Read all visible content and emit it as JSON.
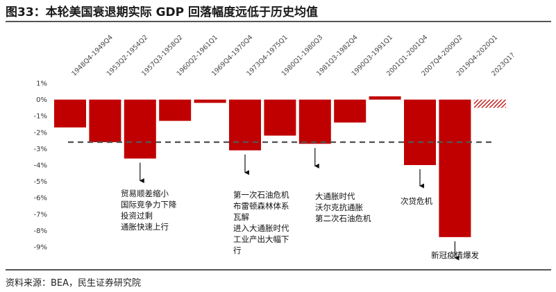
{
  "header": {
    "title": "图33：本轮美国衰退期实际 GDP 回落幅度远低于历史均值"
  },
  "footer": {
    "source": "资料来源：BEA，民生证券研究院"
  },
  "colors": {
    "bar": "#c00000",
    "hatch": "#c00000",
    "avg_line": "#555555"
  },
  "chart_data": {
    "type": "bar",
    "title": "本轮美国衰退期实际 GDP 回落幅度远低于历史均值",
    "xlabel": "",
    "ylabel": "",
    "ylim": [
      -9,
      1
    ],
    "yticks": [
      "1%",
      "0%",
      "-1%",
      "-2%",
      "-3%",
      "-4%",
      "-5%",
      "-6%",
      "-7%",
      "-8%",
      "-9%"
    ],
    "ytick_values": [
      1,
      0,
      -1,
      -2,
      -3,
      -4,
      -5,
      -6,
      -7,
      -8,
      -9
    ],
    "categories": [
      "1948Q4-1949Q4",
      "1953Q2-1954Q2",
      "1957Q3-1958Q2",
      "1960Q2-1961Q1",
      "1969Q4-1970Q4",
      "1973Q4-1975Q1",
      "1980Q1-1980Q3",
      "1981Q3-1982Q4",
      "1990Q3-1991Q1",
      "2001Q1-2001Q4",
      "2007Q4-2009Q2",
      "2019Q4-2020Q1",
      "2023Q1?"
    ],
    "values": [
      -1.7,
      -2.6,
      -3.6,
      -1.3,
      -0.2,
      -3.1,
      -2.2,
      -2.7,
      -1.4,
      0.2,
      -4.0,
      -8.4,
      -0.5
    ],
    "hatched": [
      false,
      false,
      false,
      false,
      false,
      false,
      false,
      false,
      false,
      false,
      false,
      false,
      true
    ],
    "average_line": -2.6,
    "grid": false,
    "legend": "none",
    "annotations": [
      {
        "bar_index": 2,
        "lines": [
          "贸易顺差缩小",
          "国际竞争力下降",
          "投资过剩",
          "通胀快速上行"
        ]
      },
      {
        "bar_index": 5,
        "lines": [
          "第一次石油危机",
          "布雷顿森林体系",
          "瓦解",
          "进入大通胀时代",
          "工业产出大幅下",
          "行"
        ]
      },
      {
        "bar_index": 7,
        "lines": [
          "大通胀时代",
          "沃尔克抗通胀",
          "第二次石油危机"
        ]
      },
      {
        "bar_index": 10,
        "lines": [
          "次贷危机"
        ]
      },
      {
        "bar_index": 11,
        "lines": [
          "新冠疫情爆发"
        ]
      }
    ]
  }
}
